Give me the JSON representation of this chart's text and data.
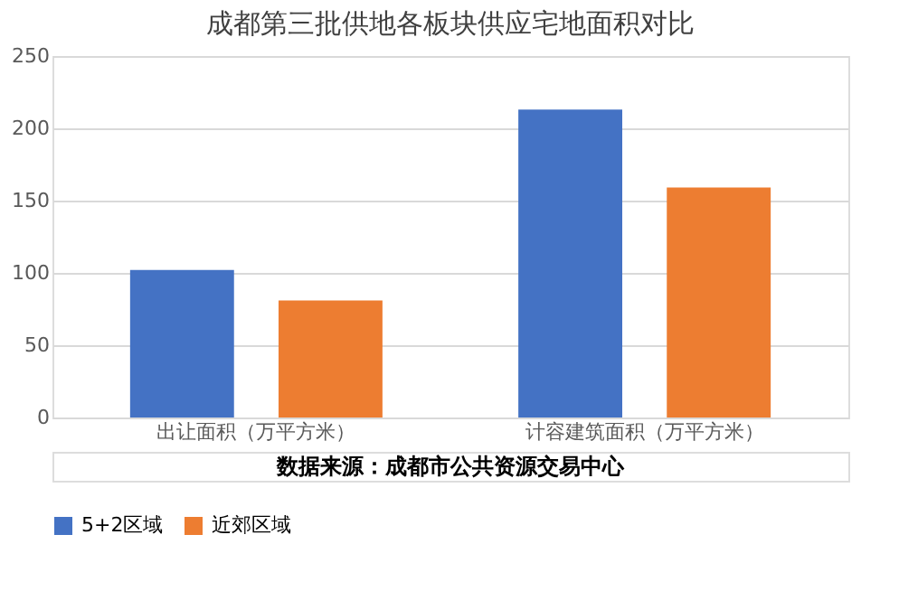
{
  "chart_data": {
    "type": "bar",
    "title": "成都第三批供地各板块供应宅地面积对比",
    "categories": [
      "出让面积（万平方米）",
      "计容建筑面积（万平方米）"
    ],
    "series": [
      {
        "name": "5+2区域",
        "color": "#4472c4",
        "values": [
          102,
          213
        ]
      },
      {
        "name": "近郊区域",
        "color": "#ed7d31",
        "values": [
          81,
          159
        ]
      }
    ],
    "ylim": [
      0,
      250
    ],
    "yticks": [
      0,
      50,
      100,
      150,
      200,
      250
    ],
    "grid": "y",
    "legend": "bottom",
    "annotations": [
      "数据来源：成都市公共资源交易中心"
    ]
  }
}
